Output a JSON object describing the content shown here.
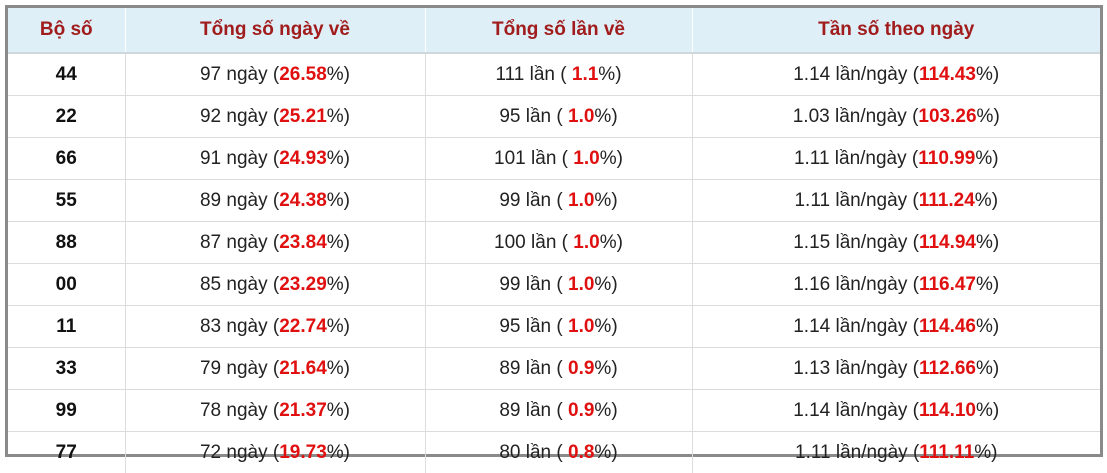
{
  "table": {
    "headers": [
      "Bộ số",
      "Tổng số ngày về",
      "Tổng số lần về",
      "Tần số theo ngày"
    ],
    "rows": [
      [
        "44",
        [
          "97 ngày (",
          "26.58",
          "%)"
        ],
        [
          "111 lần ( ",
          "1.1",
          "%)"
        ],
        [
          "1.14 lần/ngày (",
          "114.43",
          "%)"
        ]
      ],
      [
        "22",
        [
          "92 ngày (",
          "25.21",
          "%)"
        ],
        [
          "95 lần ( ",
          "1.0",
          "%)"
        ],
        [
          "1.03 lần/ngày (",
          "103.26",
          "%)"
        ]
      ],
      [
        "66",
        [
          "91 ngày (",
          "24.93",
          "%)"
        ],
        [
          "101 lần ( ",
          "1.0",
          "%)"
        ],
        [
          "1.11 lần/ngày (",
          "110.99",
          "%)"
        ]
      ],
      [
        "55",
        [
          "89 ngày (",
          "24.38",
          "%)"
        ],
        [
          "99 lần ( ",
          "1.0",
          "%)"
        ],
        [
          "1.11 lần/ngày (",
          "111.24",
          "%)"
        ]
      ],
      [
        "88",
        [
          "87 ngày (",
          "23.84",
          "%)"
        ],
        [
          "100 lần ( ",
          "1.0",
          "%)"
        ],
        [
          "1.15 lần/ngày (",
          "114.94",
          "%)"
        ]
      ],
      [
        "00",
        [
          "85 ngày (",
          "23.29",
          "%)"
        ],
        [
          "99 lần ( ",
          "1.0",
          "%)"
        ],
        [
          "1.16 lần/ngày (",
          "116.47",
          "%)"
        ]
      ],
      [
        "11",
        [
          "83 ngày (",
          "22.74",
          "%)"
        ],
        [
          "95 lần ( ",
          "1.0",
          "%)"
        ],
        [
          "1.14 lần/ngày (",
          "114.46",
          "%)"
        ]
      ],
      [
        "33",
        [
          "79 ngày (",
          "21.64",
          "%)"
        ],
        [
          "89 lần ( ",
          "0.9",
          "%)"
        ],
        [
          "1.13 lần/ngày (",
          "112.66",
          "%)"
        ]
      ],
      [
        "99",
        [
          "78 ngày (",
          "21.37",
          "%)"
        ],
        [
          "89 lần ( ",
          "0.9",
          "%)"
        ],
        [
          "1.14 lần/ngày (",
          "114.10",
          "%)"
        ]
      ],
      [
        "77",
        [
          "72 ngày (",
          "19.73",
          "%)"
        ],
        [
          "80 lần ( ",
          "0.8",
          "%)"
        ],
        [
          "1.11 lần/ngày (",
          "111.11",
          "%)"
        ]
      ]
    ]
  }
}
